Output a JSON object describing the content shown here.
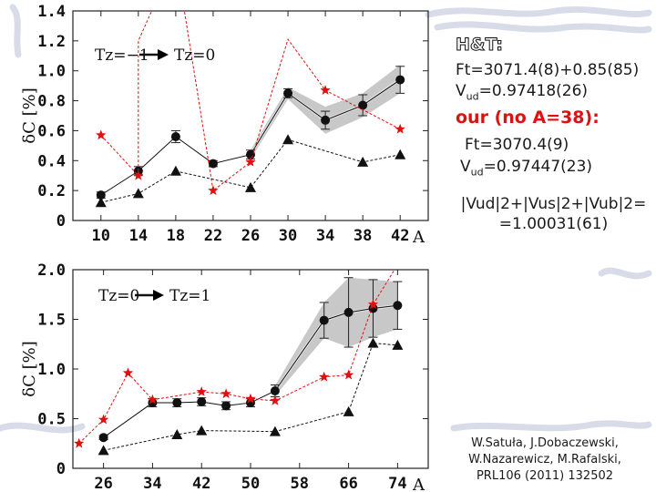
{
  "chart_data": [
    {
      "type": "line",
      "panel": "top",
      "ylabel": "δC [%]",
      "xlabel": "A",
      "arrow_label": {
        "from": "Tz=−1",
        "to": "Tz=0"
      },
      "ylim": [
        0,
        1.4
      ],
      "yticks": [
        "0",
        "0.2",
        "0.4",
        "0.6",
        "0.8",
        "1.0",
        "1.2",
        "1.4"
      ],
      "ytick_values": [
        0,
        0.2,
        0.4,
        0.6,
        0.8,
        1.0,
        1.2,
        1.4
      ],
      "xticks": [
        "10",
        "14",
        "18",
        "22",
        "26",
        "30",
        "34",
        "38",
        "42"
      ],
      "xtick_values": [
        10,
        14,
        18,
        22,
        26,
        30,
        34,
        38,
        42
      ],
      "xlim": [
        7,
        45
      ],
      "series": [
        {
          "marker": "circle",
          "color": "#000000",
          "x": [
            10,
            14,
            18,
            22,
            26,
            30,
            34,
            38,
            42
          ],
          "y": [
            0.17,
            0.33,
            0.56,
            0.38,
            0.44,
            0.85,
            0.67,
            0.77,
            0.94
          ],
          "err": [
            0.02,
            0.03,
            0.04,
            0.02,
            0.03,
            0.03,
            0.06,
            0.07,
            0.09
          ]
        },
        {
          "marker": "star",
          "color": "#e01010",
          "x": [
            10,
            14,
            22,
            26,
            34,
            42
          ],
          "y": [
            0.57,
            0.3,
            0.2,
            0.39,
            0.87,
            0.61
          ],
          "x_off": [
            14,
            18,
            30
          ],
          "y_off": [
            1.2,
            1.76,
            1.21
          ]
        },
        {
          "marker": "triangle",
          "color": "#000000",
          "x": [
            10,
            14,
            18,
            26,
            30,
            38,
            42
          ],
          "y": [
            0.12,
            0.18,
            0.33,
            0.22,
            0.54,
            0.39,
            0.44
          ]
        }
      ],
      "band": {
        "x": [
          26,
          30,
          34,
          38,
          42
        ],
        "upper": [
          0.47,
          0.89,
          0.76,
          0.85,
          1.04
        ],
        "lower": [
          0.41,
          0.81,
          0.58,
          0.69,
          0.85
        ]
      }
    },
    {
      "type": "line",
      "panel": "bottom",
      "ylabel": "δC [%]",
      "xlabel": "A",
      "arrow_label": {
        "from": "Tz=0",
        "to": "Tz=1"
      },
      "ylim": [
        0,
        2.0
      ],
      "yticks": [
        "0",
        "0.5",
        "1.0",
        "1.5",
        "2.0"
      ],
      "ytick_values": [
        0,
        0.5,
        1.0,
        1.5,
        2.0
      ],
      "xticks": [
        "26",
        "34",
        "42",
        "50",
        "58",
        "66",
        "74"
      ],
      "xtick_values": [
        26,
        34,
        42,
        50,
        58,
        66,
        74
      ],
      "xlim": [
        21,
        79
      ],
      "series": [
        {
          "marker": "circle",
          "color": "#000000",
          "x": [
            26,
            34,
            38,
            42,
            46,
            50,
            54,
            62,
            66,
            70,
            74
          ],
          "y": [
            0.31,
            0.66,
            0.66,
            0.67,
            0.63,
            0.66,
            0.78,
            1.49,
            1.57,
            1.61,
            1.64
          ],
          "err": [
            0.02,
            0.04,
            0.04,
            0.04,
            0.04,
            0.04,
            0.06,
            0.18,
            0.35,
            0.29,
            0.24
          ]
        },
        {
          "marker": "star",
          "color": "#e01010",
          "x": [
            22,
            26,
            30,
            34,
            42,
            46,
            50,
            54,
            62,
            66,
            70,
            74
          ],
          "y": [
            0.25,
            0.49,
            0.96,
            0.69,
            0.77,
            0.75,
            0.7,
            0.68,
            0.92,
            0.94,
            1.65,
            2.05
          ]
        },
        {
          "marker": "triangle",
          "color": "#000000",
          "x": [
            26,
            38,
            42,
            54,
            66,
            70,
            74
          ],
          "y": [
            0.18,
            0.34,
            0.38,
            0.37,
            0.57,
            1.26,
            1.24
          ]
        }
      ],
      "band": {
        "x": [
          54,
          62,
          66,
          70,
          74
        ],
        "upper": [
          0.83,
          1.67,
          1.92,
          1.9,
          1.88
        ],
        "lower": [
          0.73,
          1.31,
          1.22,
          1.32,
          1.4
        ]
      }
    }
  ],
  "info": {
    "ht_heading": "H&T:",
    "ht_ft": "Ft=3071.4(8)+0.85(85)",
    "ht_vud_prefix": "V",
    "ht_vud_sub": "ud",
    "ht_vud_value": "=0.97418(26)",
    "our_heading": "our (no A=38):",
    "our_ft": "Ft=3070.4(9)",
    "our_vud_prefix": "V",
    "our_vud_sub": "ud",
    "our_vud_value": "=0.97447(23)",
    "unitarity_line1": "|Vud|2+|Vus|2+|Vub|2=",
    "unitarity_line2": "=1.00031(61)",
    "citation_line1": "W.Satuła, J.Dobaczewski,",
    "citation_line2": "W.Nazarewicz, M.Rafalski,",
    "citation_line3": "PRL106 (2011) 132502"
  },
  "colors": {
    "star": "#e01010",
    "band": "#9a9a9a",
    "decor": "#b8bfd6"
  }
}
